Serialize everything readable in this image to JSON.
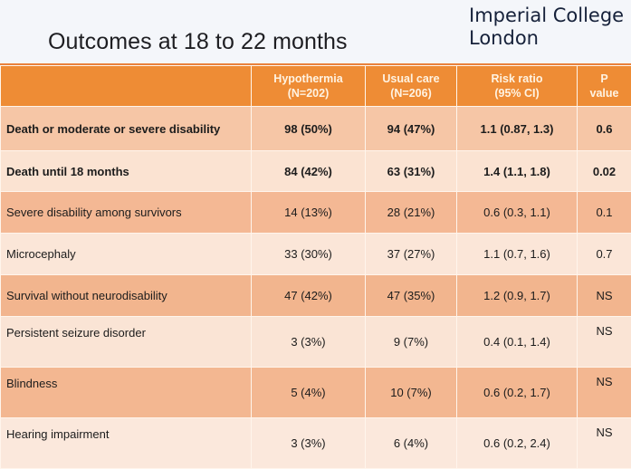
{
  "slide": {
    "title": "Outcomes at 18 to 22 months",
    "logo": {
      "line1": "Imperial College",
      "line2": "London"
    }
  },
  "table": {
    "headers": [
      "",
      "Hypothermia (N=202)",
      "Usual care (N=206)",
      "Risk ratio (95% CI)",
      "P value"
    ],
    "header_lines": [
      [
        "",
        ""
      ],
      [
        "Hypothermia",
        "(N=202)"
      ],
      [
        "Usual care",
        "(N=206)"
      ],
      [
        "Risk ratio",
        "(95% CI)"
      ],
      [
        "P",
        "value"
      ]
    ],
    "rows": [
      {
        "outcome": "Death or moderate or severe disability",
        "hypothermia": "98 (50%)",
        "usual_care": "94 (47%)",
        "risk_ratio": "1.1 (0.87, 1.3)",
        "p_value": "0.6"
      },
      {
        "outcome": "Death until 18 months",
        "hypothermia": "84 (42%)",
        "usual_care": "63 (31%)",
        "risk_ratio": "1.4 (1.1, 1.8)",
        "p_value": "0.02"
      },
      {
        "outcome": "Severe disability among survivors",
        "hypothermia": "14 (13%)",
        "usual_care": "28 (21%)",
        "risk_ratio": "0.6 (0.3, 1.1)",
        "p_value": "0.1"
      },
      {
        "outcome": "Microcephaly",
        "hypothermia": "33 (30%)",
        "usual_care": "37 (27%)",
        "risk_ratio": "1.1 (0.7, 1.6)",
        "p_value": "0.7"
      },
      {
        "outcome": "Survival without neurodisability",
        "hypothermia": "47 (42%)",
        "usual_care": "47 (35%)",
        "risk_ratio": "1.2 (0.9, 1.7)",
        "p_value": "NS"
      },
      {
        "outcome": "Persistent seizure disorder",
        "hypothermia": "3 (3%)",
        "usual_care": "9 (7%)",
        "risk_ratio": "0.4 (0.1, 1.4)",
        "p_value": "NS"
      },
      {
        "outcome": "Blindness",
        "hypothermia": "5 (4%)",
        "usual_care": "10 (7%)",
        "risk_ratio": "0.6 (0.2, 1.7)",
        "p_value": "NS"
      },
      {
        "outcome": "Hearing impairment",
        "hypothermia": "3 (3%)",
        "usual_care": "6 (4%)",
        "risk_ratio": "0.6 (0.2, 2.4)",
        "p_value": "NS"
      }
    ]
  },
  "colors": {
    "header_orange": "#ee8c35",
    "row_dark": "#f3b791",
    "row_light": "#fbe5d6",
    "title_text": "#1e1e22"
  }
}
